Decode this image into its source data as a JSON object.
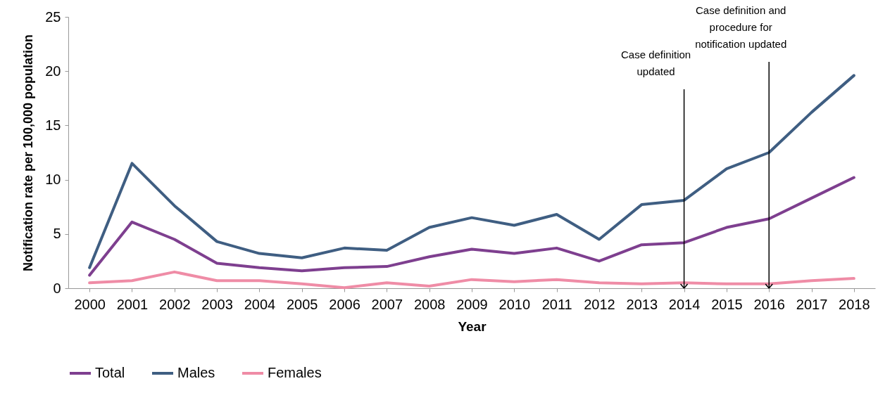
{
  "chart_data": {
    "type": "line",
    "xlabel": "Year",
    "ylabel": "Notification rate per 100,000 population",
    "categories": [
      "2000",
      "2001",
      "2002",
      "2003",
      "2004",
      "2005",
      "2006",
      "2007",
      "2008",
      "2009",
      "2010",
      "2011",
      "2012",
      "2013",
      "2014",
      "2015",
      "2016",
      "2017",
      "2018"
    ],
    "series": [
      {
        "name": "Total",
        "color": "#7e3f8f",
        "values": [
          1.2,
          6.1,
          4.5,
          2.3,
          1.9,
          1.6,
          1.9,
          2.0,
          2.9,
          3.6,
          3.2,
          3.7,
          2.5,
          4.0,
          4.2,
          5.6,
          6.4,
          8.3,
          10.2
        ]
      },
      {
        "name": "Males",
        "color": "#3f5e82",
        "values": [
          1.9,
          11.5,
          7.6,
          4.3,
          3.2,
          2.8,
          3.7,
          3.5,
          5.6,
          6.5,
          5.8,
          6.8,
          4.5,
          7.7,
          8.1,
          11.0,
          12.5,
          16.2,
          19.6
        ]
      },
      {
        "name": "Females",
        "color": "#ef8ca6",
        "values": [
          0.5,
          0.7,
          1.5,
          0.7,
          0.7,
          0.4,
          0.05,
          0.5,
          0.2,
          0.8,
          0.6,
          0.8,
          0.5,
          0.4,
          0.5,
          0.4,
          0.4,
          0.7,
          0.9
        ]
      }
    ],
    "ylim": [
      0,
      25
    ],
    "yticks": [
      0,
      5,
      10,
      15,
      20,
      25
    ],
    "legend": "bottom",
    "ref_lines": [
      {
        "axis": "x",
        "value": "2014",
        "label": "Case definition\nupdated"
      },
      {
        "axis": "x",
        "value": "2016",
        "label": "Case definition and\nprocedure for\nnotification updated"
      }
    ]
  }
}
